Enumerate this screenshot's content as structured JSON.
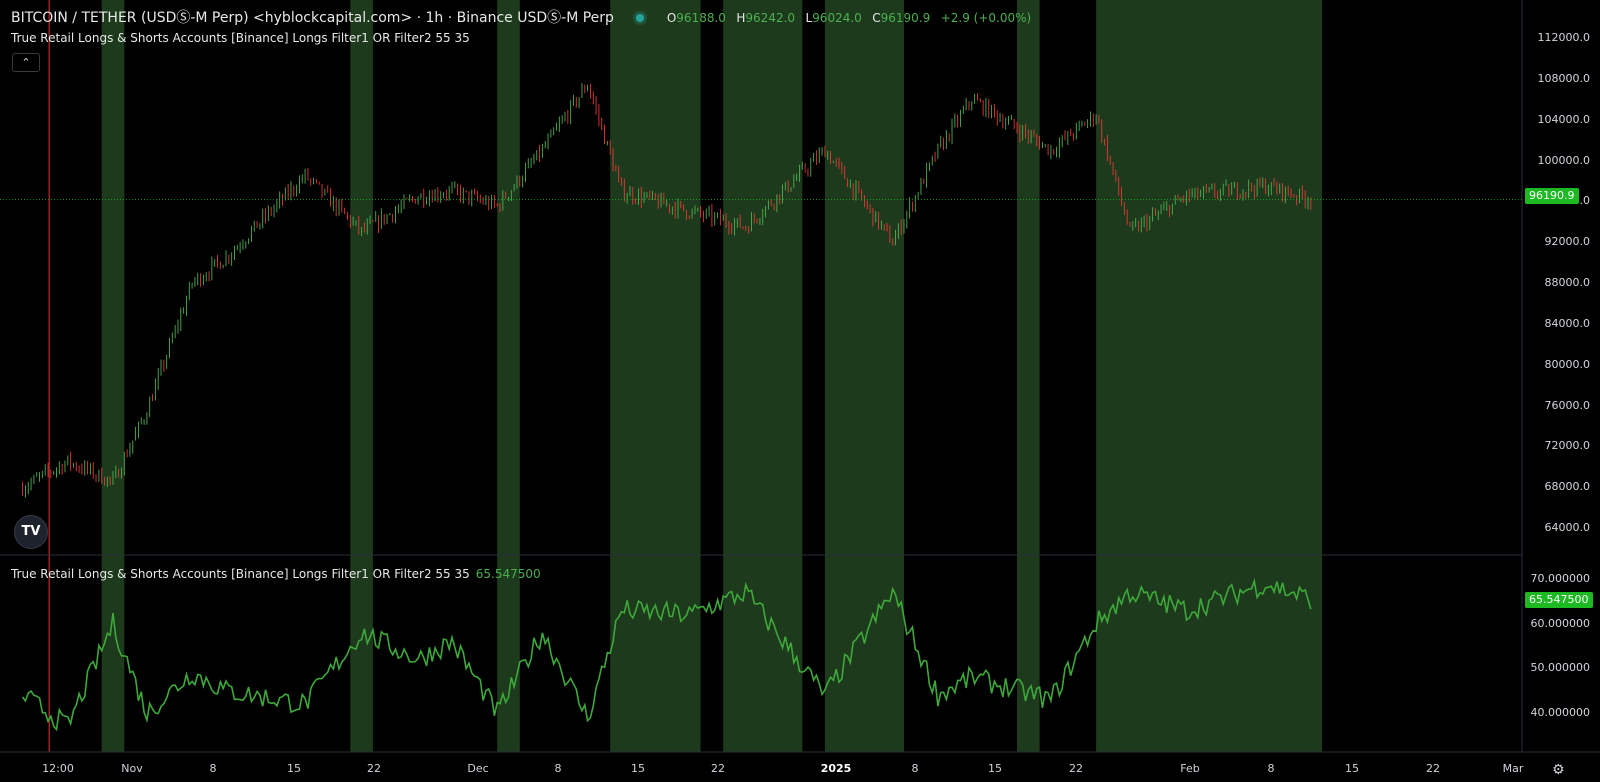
{
  "header": {
    "symbol": "BITCOIN / TETHER (USDⓈ-M Perp) <hyblockcapital.com> · 1h · Binance USDⓈ-M Perp",
    "ohlc": {
      "o_label": "O",
      "o": "96188.0",
      "h_label": "H",
      "h": "96242.0",
      "l_label": "L",
      "l": "96024.0",
      "c_label": "C",
      "c": "96190.9",
      "change": "+2.9 (+0.00%)"
    }
  },
  "main_pane": {
    "indicator_title": "True Retail Longs & Shorts Accounts [Binance] Longs Filter1 OR Filter2 55 35",
    "collapse_icon": "chevron-up-icon",
    "price_axis": [
      "112000.0",
      "108000.0",
      "104000.0",
      "100000.0",
      "96000.0",
      "92000.0",
      "88000.0",
      "84000.0",
      "80000.0",
      "76000.0",
      "72000.0",
      "68000.0",
      "64000.0"
    ],
    "last_price": "96190.9"
  },
  "lower_pane": {
    "indicator_title": "True Retail Longs & Shorts Accounts [Binance] Longs Filter1 OR Filter2 55 35",
    "indicator_value": "65.547500",
    "value_axis": [
      "70.000000",
      "60.000000",
      "50.000000",
      "40.000000"
    ],
    "last_value": "65.547500"
  },
  "time_axis": [
    "12:00",
    "Nov",
    "8",
    "15",
    "22",
    "Dec",
    "8",
    "15",
    "22",
    "2025",
    "8",
    "15",
    "22",
    "Feb",
    "8",
    "15",
    "22",
    "Mar"
  ],
  "logo": "TV",
  "colors": {
    "accent": "#1db923",
    "band": "#1d3a1d",
    "series": "#3ea83a",
    "red_line": "#c62828"
  },
  "chart_data": {
    "type": "line",
    "title": "",
    "series": [
      {
        "name": "BITCOIN / TETHER",
        "type": "candlestick-approx",
        "x": [
          "2024-10-28",
          "2024-11-01",
          "2024-11-05",
          "2024-11-08",
          "2024-11-12",
          "2024-11-15",
          "2024-11-22",
          "2024-11-27",
          "2024-12-02",
          "2024-12-05",
          "2024-12-09",
          "2024-12-13",
          "2024-12-17",
          "2024-12-20",
          "2024-12-26",
          "2024-12-31",
          "2025-01-07",
          "2025-01-13",
          "2025-01-17",
          "2025-01-20",
          "2025-01-27",
          "2025-01-31",
          "2025-02-03",
          "2025-02-08",
          "2025-02-15",
          "2025-02-19"
        ],
        "values": [
          68000,
          70500,
          68500,
          75500,
          88000,
          90500,
          98500,
          93000,
          96500,
          97000,
          95500,
          101000,
          107500,
          97000,
          95000,
          93500,
          101000,
          92000,
          101000,
          106000,
          101000,
          104500,
          93000,
          96500,
          97500,
          96190.9
        ]
      },
      {
        "name": "Longs Filter1 OR Filter2 55 35",
        "pane": "lower",
        "x": [
          "2024-10-28",
          "2024-11-01",
          "2024-11-05",
          "2024-11-08",
          "2024-11-12",
          "2024-11-15",
          "2024-11-22",
          "2024-11-27",
          "2024-12-02",
          "2024-12-05",
          "2024-12-09",
          "2024-12-13",
          "2024-12-17",
          "2024-12-20",
          "2024-12-26",
          "2024-12-31",
          "2025-01-07",
          "2025-01-13",
          "2025-01-17",
          "2025-01-20",
          "2025-01-27",
          "2025-01-31",
          "2025-02-03",
          "2025-02-08",
          "2025-02-15",
          "2025-02-19"
        ],
        "values": [
          44,
          37,
          60,
          40,
          49,
          45,
          42,
          58,
          52,
          56,
          40,
          58,
          39,
          63,
          62,
          67,
          44,
          67,
          44,
          48,
          43,
          60,
          67,
          63,
          69,
          65.5475
        ]
      }
    ],
    "highlight_bands": [
      [
        "2024-11-04",
        "2024-11-06"
      ],
      [
        "2024-11-26",
        "2024-11-28"
      ],
      [
        "2024-12-09",
        "2024-12-11"
      ],
      [
        "2024-12-19",
        "2024-12-27"
      ],
      [
        "2024-12-29",
        "2025-01-05"
      ],
      [
        "2025-01-07",
        "2025-01-14"
      ],
      [
        "2025-01-24",
        "2025-01-26"
      ],
      [
        "2025-01-31",
        "2025-02-20"
      ]
    ],
    "ylim_price": [
      62000,
      114000
    ],
    "ylim_indicator": [
      34,
      73
    ],
    "grid": false
  }
}
